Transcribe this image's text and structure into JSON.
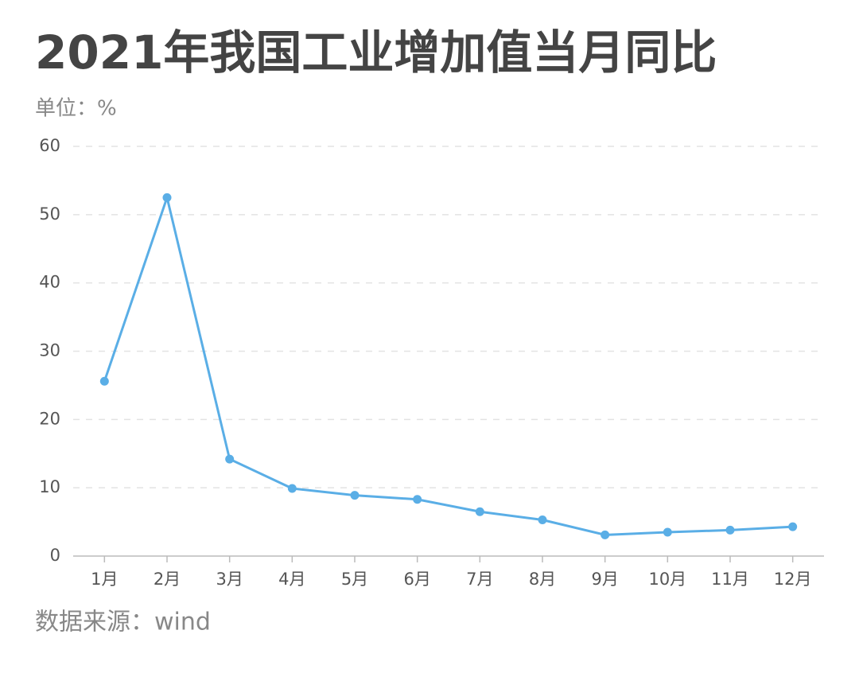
{
  "chart_data": {
    "type": "line",
    "title": "2021年我国工业增加值当月同比",
    "subtitle": "单位：%",
    "source": "数据来源：wind",
    "categories": [
      "1月",
      "2月",
      "3月",
      "4月",
      "5月",
      "6月",
      "7月",
      "8月",
      "9月",
      "10月",
      "11月",
      "12月"
    ],
    "series": [
      {
        "color": "#5aaee6",
        "values": [
          25.6,
          52.5,
          14.2,
          9.9,
          8.9,
          8.3,
          6.5,
          5.3,
          3.1,
          3.5,
          3.8,
          4.3
        ]
      }
    ],
    "ylim": [
      0,
      60
    ],
    "yticks": [
      0,
      10,
      20,
      30,
      40,
      50,
      60
    ],
    "grid": true
  }
}
